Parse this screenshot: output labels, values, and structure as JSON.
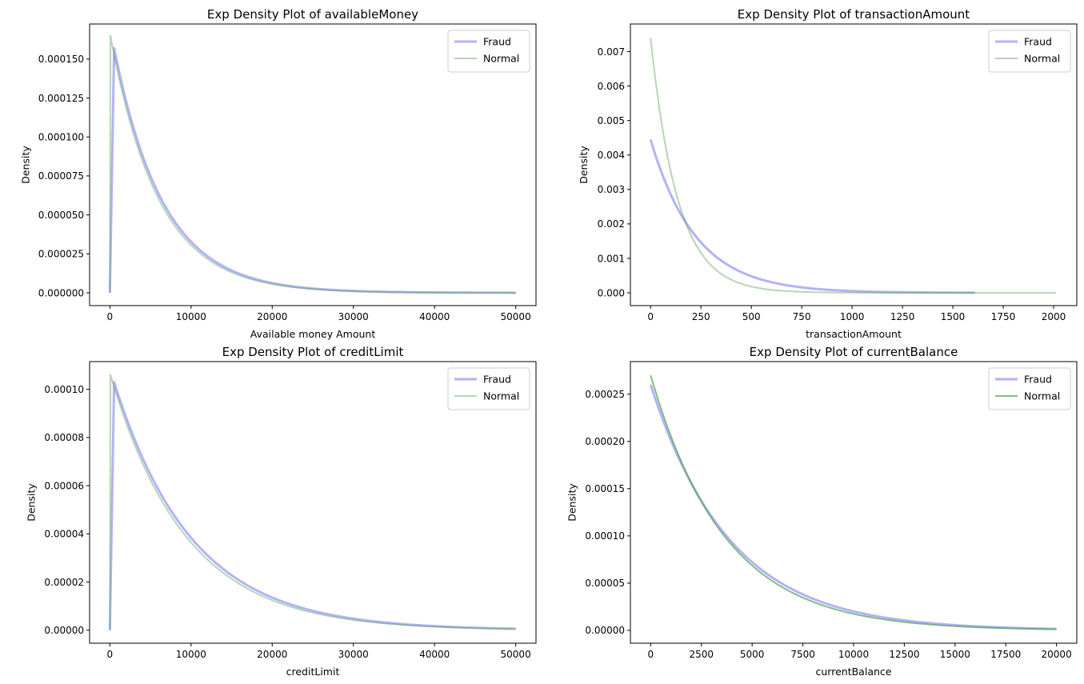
{
  "chart_data": [
    {
      "type": "line",
      "title": "Exp Density Plot of availableMoney",
      "xlabel": "Available money Amount",
      "ylabel": "Density",
      "xlim": [
        -2500,
        52500
      ],
      "ylim": [
        -8.2e-06,
        0.0001725
      ],
      "xticks": [
        0,
        10000,
        20000,
        30000,
        40000,
        50000
      ],
      "xtick_labels": [
        "0",
        "10000",
        "20000",
        "30000",
        "40000",
        "50000"
      ],
      "yticks": [
        0,
        2.5e-05,
        5e-05,
        7.5e-05,
        0.0001,
        0.000125,
        0.00015
      ],
      "ytick_labels": [
        "0.000000",
        "0.000025",
        "0.000050",
        "0.000075",
        "0.000100",
        "0.000125",
        "0.000150"
      ],
      "legend_position": "top-right",
      "series": [
        {
          "name": "Fraud",
          "color": "#7f7ff5",
          "opacity": 0.6,
          "width": 3,
          "x": [
            0,
            520,
            50000
          ],
          "peak_x": 520,
          "peak_y": 0.000157,
          "decay": 6050
        },
        {
          "name": "Normal",
          "color": "#5ba55b",
          "opacity": 0.45,
          "width": 2,
          "x": [
            0,
            70,
            50000
          ],
          "peak_x": 70,
          "peak_y": 0.000165,
          "decay": 5900
        }
      ]
    },
    {
      "type": "line",
      "title": "Exp Density Plot of transactionAmount",
      "xlabel": "transactionAmount",
      "ylabel": "Density",
      "xlim": [
        -100,
        2115
      ],
      "ylim": [
        -0.00037,
        0.0078
      ],
      "xticks": [
        0,
        250,
        500,
        750,
        1000,
        1250,
        1500,
        1750,
        2000
      ],
      "xtick_labels": [
        "0",
        "250",
        "500",
        "750",
        "1000",
        "1250",
        "1500",
        "1750",
        "2000"
      ],
      "yticks": [
        0,
        0.001,
        0.002,
        0.003,
        0.004,
        0.005,
        0.006,
        0.007
      ],
      "ytick_labels": [
        "0.000",
        "0.001",
        "0.002",
        "0.003",
        "0.004",
        "0.005",
        "0.006",
        "0.007"
      ],
      "legend_position": "top-right",
      "series": [
        {
          "name": "Fraud",
          "color": "#7f7ff5",
          "opacity": 0.6,
          "width": 3,
          "x": [
            0,
            1610
          ],
          "peak_x": 0,
          "peak_y": 0.00445,
          "decay": 225
        },
        {
          "name": "Normal",
          "color": "#5ba55b",
          "opacity": 0.45,
          "width": 2,
          "x": [
            0,
            2010
          ],
          "peak_x": 0,
          "peak_y": 0.0074,
          "decay": 135
        }
      ]
    },
    {
      "type": "line",
      "title": "Exp Density Plot of creditLimit",
      "xlabel": "creditLimit",
      "ylabel": "Density",
      "xlim": [
        -2500,
        52500
      ],
      "ylim": [
        -5.4e-06,
        0.0001115
      ],
      "xticks": [
        0,
        10000,
        20000,
        30000,
        40000,
        50000
      ],
      "xtick_labels": [
        "0",
        "10000",
        "20000",
        "30000",
        "40000",
        "50000"
      ],
      "yticks": [
        0,
        2e-05,
        4e-05,
        6e-05,
        8e-05,
        0.0001
      ],
      "ytick_labels": [
        "0.00000",
        "0.00002",
        "0.00004",
        "0.00006",
        "0.00008",
        "0.00010"
      ],
      "legend_position": "top-right",
      "series": [
        {
          "name": "Fraud",
          "color": "#7f7ff5",
          "opacity": 0.6,
          "width": 3,
          "x": [
            0,
            520,
            50000
          ],
          "peak_x": 520,
          "peak_y": 0.000103,
          "decay": 9600
        },
        {
          "name": "Normal",
          "color": "#5ba55b",
          "opacity": 0.45,
          "width": 2,
          "x": [
            0,
            70,
            50000
          ],
          "peak_x": 70,
          "peak_y": 0.000106,
          "decay": 9300
        }
      ]
    },
    {
      "type": "line",
      "title": "Exp Density Plot of currentBalance",
      "xlabel": "currentBalance",
      "ylabel": "Density",
      "xlim": [
        -1000,
        21000
      ],
      "ylim": [
        -1.36e-05,
        0.0002845
      ],
      "xticks": [
        0,
        2500,
        5000,
        7500,
        10000,
        12500,
        15000,
        17500,
        20000
      ],
      "xtick_labels": [
        "0",
        "2500",
        "5000",
        "7500",
        "10000",
        "12500",
        "15000",
        "17500",
        "20000"
      ],
      "yticks": [
        0,
        5e-05,
        0.0001,
        0.00015,
        0.0002,
        0.00025
      ],
      "ytick_labels": [
        "0.00000",
        "0.00005",
        "0.00010",
        "0.00015",
        "0.00020",
        "0.00025"
      ],
      "legend_position": "top-right",
      "series": [
        {
          "name": "Fraud",
          "color": "#7f7ff5",
          "opacity": 0.6,
          "width": 3,
          "x": [
            0,
            20000
          ],
          "peak_x": 0,
          "peak_y": 0.00026,
          "decay": 3900
        },
        {
          "name": "Normal",
          "color": "#5ba55b",
          "opacity": 0.75,
          "width": 2,
          "x": [
            0,
            20000
          ],
          "peak_x": 0,
          "peak_y": 0.00027,
          "decay": 3650
        }
      ]
    }
  ]
}
